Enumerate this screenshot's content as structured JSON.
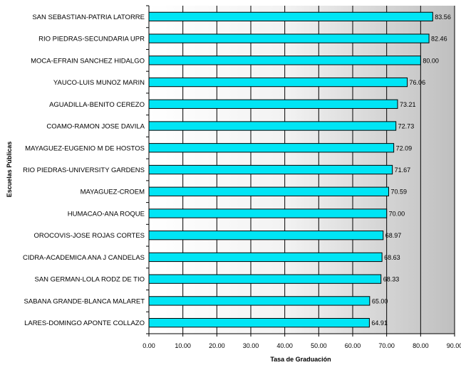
{
  "chart_data": {
    "type": "bar",
    "orientation": "horizontal",
    "categories": [
      "SAN SEBASTIAN-PATRIA LATORRE",
      "RIO PIEDRAS-SECUNDARIA UPR",
      "MOCA-EFRAIN SANCHEZ HIDALGO",
      "YAUCO-LUIS MUNOZ MARIN",
      "AGUADILLA-BENITO CEREZO",
      "COAMO-RAMON JOSE DAVILA",
      "MAYAGUEZ-EUGENIO M DE HOSTOS",
      "RIO PIEDRAS-UNIVERSITY GARDENS",
      "MAYAGUEZ-CROEM",
      "HUMACAO-ANA ROQUE",
      "OROCOVIS-JOSE ROJAS CORTES",
      "CIDRA-ACADEMICA ANA J CANDELAS",
      "SAN GERMAN-LOLA RODZ DE TIO",
      "SABANA GRANDE-BLANCA MALARET",
      "LARES-DOMINGO APONTE COLLAZO"
    ],
    "values": [
      83.56,
      82.46,
      80.0,
      76.06,
      73.21,
      72.73,
      72.09,
      71.67,
      70.59,
      70.0,
      68.97,
      68.63,
      68.33,
      65.0,
      64.91
    ],
    "value_labels": [
      "83.56",
      "82.46",
      "80.00",
      "76.06",
      "73.21",
      "72.73",
      "72.09",
      "71.67",
      "70.59",
      "70.00",
      "68.97",
      "68.63",
      "68.33",
      "65.00",
      "64.91"
    ],
    "xlim": [
      0,
      90
    ],
    "xticks": [
      0,
      10,
      20,
      30,
      40,
      50,
      60,
      70,
      80,
      90
    ],
    "xtick_labels": [
      "0.00",
      "10.00",
      "20.00",
      "30.00",
      "40.00",
      "50.00",
      "60.00",
      "70.00",
      "80.00",
      "90.00"
    ],
    "xlabel": "Tasa de Graduación",
    "ylabel": "Escuelas Públicas",
    "title": "",
    "grid": "vertical",
    "bar_color": "#00E5F5",
    "bar_edge_color": "#000000",
    "background": "gray gradient"
  }
}
